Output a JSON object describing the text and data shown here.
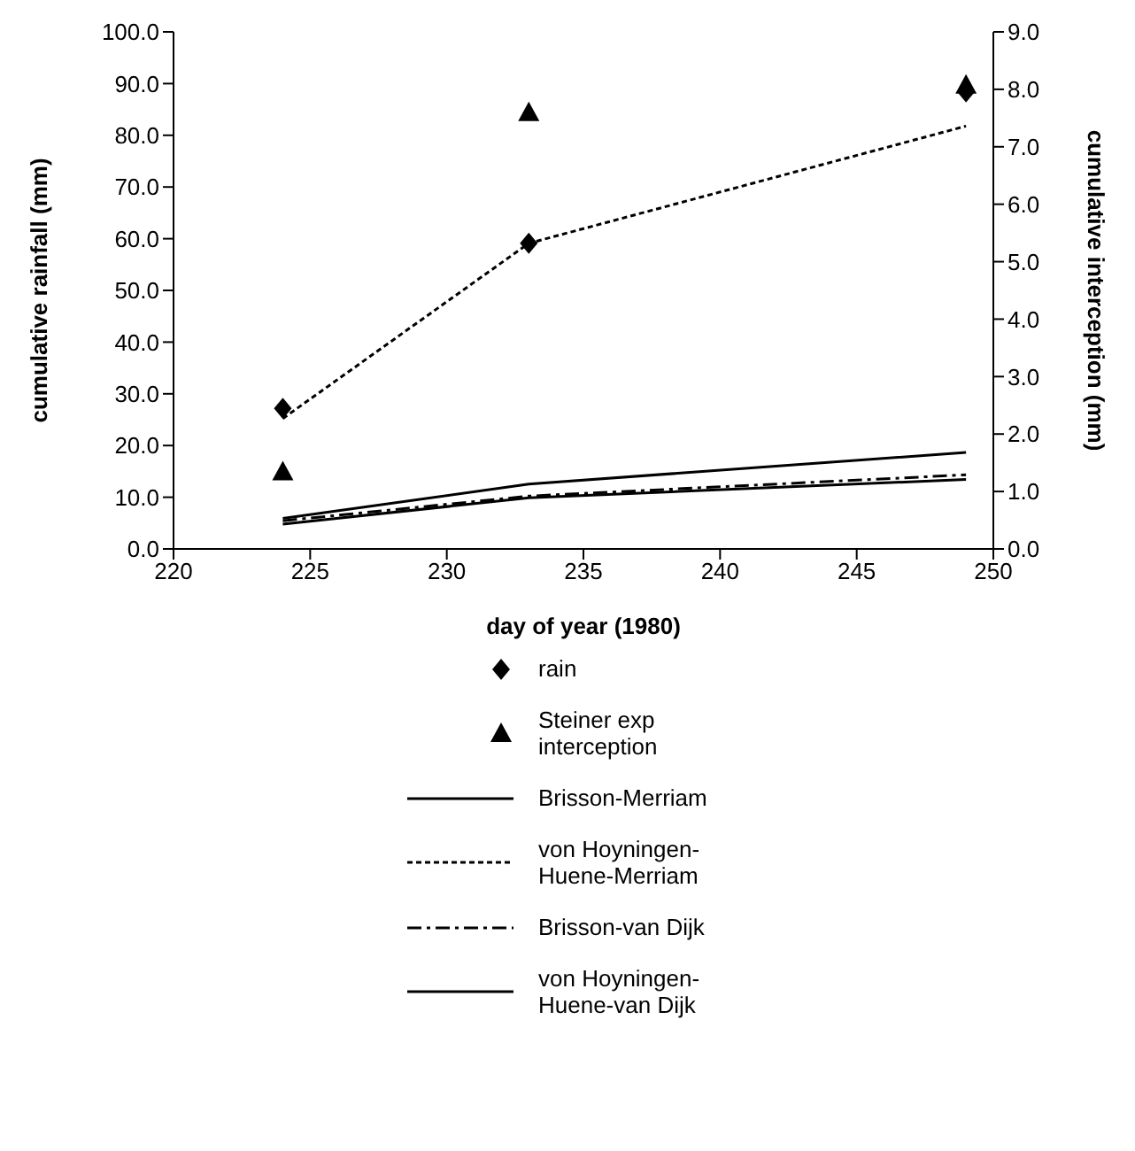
{
  "chart_data": {
    "type": "line",
    "xlabel": "day of year (1980)",
    "ylabel": "cumulative rainfall (mm)",
    "y2label": "cumulative interception (mm)",
    "x": [
      224,
      233,
      249
    ],
    "xlim": [
      220,
      250
    ],
    "xticks": [
      220,
      225,
      230,
      235,
      240,
      245,
      250
    ],
    "ylim": [
      0,
      100
    ],
    "yticks": [
      {
        "value": 0,
        "label": "0.0"
      },
      {
        "value": 10,
        "label": "10.0"
      },
      {
        "value": 20,
        "label": "20.0"
      },
      {
        "value": 30,
        "label": "30.0"
      },
      {
        "value": 40,
        "label": "40.0"
      },
      {
        "value": 50,
        "label": "50.0"
      },
      {
        "value": 60,
        "label": "60.0"
      },
      {
        "value": 70,
        "label": "70.0"
      },
      {
        "value": 80,
        "label": "80.0"
      },
      {
        "value": 90,
        "label": "90.0"
      },
      {
        "value": 100,
        "label": "100.0"
      }
    ],
    "y2lim": [
      0,
      9
    ],
    "y2ticks": [
      {
        "value": 0,
        "label": "0.0"
      },
      {
        "value": 1,
        "label": "1.0"
      },
      {
        "value": 2,
        "label": "2.0"
      },
      {
        "value": 3,
        "label": "3.0"
      },
      {
        "value": 4,
        "label": "4.0"
      },
      {
        "value": 5,
        "label": "5.0"
      },
      {
        "value": 6,
        "label": "6.0"
      },
      {
        "value": 7,
        "label": "7.0"
      },
      {
        "value": 8,
        "label": "8.0"
      },
      {
        "value": 9,
        "label": "9.0"
      }
    ],
    "grid": false,
    "legend": "bottom",
    "series": [
      {
        "name": "rain",
        "type": "scatter",
        "marker": "diamond",
        "color": "#000000",
        "values": [
          27.2,
          59.1,
          88.4
        ]
      },
      {
        "name": "Steiner exp interception",
        "type": "scatter",
        "marker": "triangle",
        "axis": "y2",
        "color": "#000000",
        "values": [
          1.35,
          7.6,
          8.08
        ]
      },
      {
        "name": "Brisson-Merriam",
        "line_style": "solid",
        "axis": "y2",
        "color": "#000000",
        "values": [
          0.53,
          1.13,
          1.68
        ]
      },
      {
        "name": "von Hoyningen-Huene-Merriam",
        "line_style": "dotted",
        "axis": "y2",
        "color": "#000000",
        "values": [
          2.27,
          5.32,
          7.36
        ]
      },
      {
        "name": "Brisson-van Dijk",
        "line_style": "dashdot",
        "axis": "y2",
        "color": "#000000",
        "values": [
          0.49,
          0.92,
          1.29
        ]
      },
      {
        "name": "von Hoyningen-Huene-van Dijk",
        "line_style": "solid",
        "axis": "y2",
        "color": "#000000",
        "values": [
          0.43,
          0.89,
          1.21
        ]
      }
    ]
  }
}
